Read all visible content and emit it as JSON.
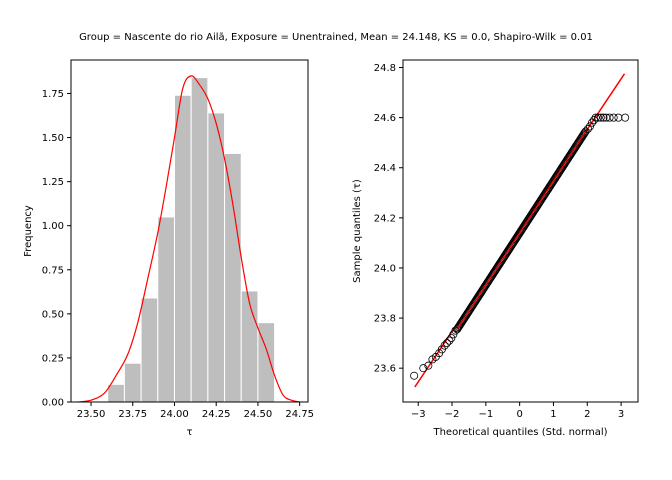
{
  "title": "Group = Nascente do rio Ailã, Exposure = Unentrained, Mean = 24.148, KS = 0.0, Shapiro-Wilk = 0.01",
  "chart_data": [
    {
      "type": "bar",
      "subtype": "histogram_with_kde",
      "xlabel": "τ",
      "ylabel": "Frequency",
      "xlim": [
        23.38,
        24.8
      ],
      "ylim": [
        0,
        1.94
      ],
      "xticks": [
        23.5,
        23.75,
        24.0,
        24.25,
        24.5,
        24.75
      ],
      "xtick_labels": [
        "23.50",
        "23.75",
        "24.00",
        "24.25",
        "24.50",
        "24.75"
      ],
      "yticks": [
        0,
        0.25,
        0.5,
        0.75,
        1.0,
        1.25,
        1.5,
        1.75
      ],
      "ytick_labels": [
        "0.00",
        "0.25",
        "0.50",
        "0.75",
        "1.00",
        "1.25",
        "1.50",
        "1.75"
      ],
      "bar_color": "#bebebe",
      "bins": [
        {
          "x0": 23.6,
          "x1": 23.7,
          "value": 0.1
        },
        {
          "x0": 23.7,
          "x1": 23.8,
          "value": 0.22
        },
        {
          "x0": 23.8,
          "x1": 23.9,
          "value": 0.59
        },
        {
          "x0": 23.9,
          "x1": 24.0,
          "value": 1.05
        },
        {
          "x0": 24.0,
          "x1": 24.1,
          "value": 1.74
        },
        {
          "x0": 24.1,
          "x1": 24.2,
          "value": 1.84
        },
        {
          "x0": 24.2,
          "x1": 24.3,
          "value": 1.64
        },
        {
          "x0": 24.3,
          "x1": 24.4,
          "value": 1.41
        },
        {
          "x0": 24.4,
          "x1": 24.5,
          "value": 0.63
        },
        {
          "x0": 24.5,
          "x1": 24.6,
          "value": 0.45
        }
      ],
      "kde_color": "#ff0000",
      "kde": {
        "x": [
          23.42,
          23.5,
          23.58,
          23.65,
          23.72,
          23.78,
          23.84,
          23.9,
          23.95,
          24.0,
          24.05,
          24.1,
          24.15,
          24.2,
          24.25,
          24.3,
          24.35,
          24.4,
          24.45,
          24.5,
          24.55,
          24.6,
          24.65,
          24.7,
          24.75
        ],
        "y": [
          0.0,
          0.01,
          0.05,
          0.15,
          0.27,
          0.45,
          0.7,
          0.96,
          1.22,
          1.5,
          1.78,
          1.85,
          1.8,
          1.72,
          1.58,
          1.38,
          1.12,
          0.82,
          0.56,
          0.42,
          0.3,
          0.15,
          0.04,
          0.01,
          0.0
        ]
      }
    },
    {
      "type": "scatter",
      "subtype": "qq_plot",
      "xlabel": "Theoretical quantiles (Std. normal)",
      "ylabel": "Sample quantiles (τ)",
      "xlim": [
        -3.45,
        3.5
      ],
      "ylim": [
        23.465,
        24.83
      ],
      "xticks": [
        -3,
        -2,
        -1,
        0,
        1,
        2,
        3
      ],
      "xtick_labels": [
        "−3",
        "−2",
        "−1",
        "0",
        "1",
        "2",
        "3"
      ],
      "yticks": [
        23.6,
        23.8,
        24.0,
        24.2,
        24.4,
        24.6,
        24.8
      ],
      "ytick_labels": [
        "23.6",
        "23.8",
        "24.0",
        "24.2",
        "24.4",
        "24.6",
        "24.8"
      ],
      "reference_line": {
        "x": [
          -3.1,
          3.1
        ],
        "y": [
          23.525,
          24.775
        ],
        "color": "#ff0000"
      },
      "points": {
        "x": [
          -3.12,
          -2.85,
          -2.7,
          -2.58,
          -2.48,
          -2.38,
          -2.3,
          -2.22,
          -2.15,
          -2.08,
          -2.02,
          -1.96,
          -1.9,
          2.02,
          2.08,
          2.14,
          2.2,
          2.25,
          2.32,
          2.4,
          2.48,
          2.56,
          2.66,
          2.78,
          2.92,
          3.12
        ],
        "y": [
          23.57,
          23.6,
          23.61,
          23.635,
          23.645,
          23.66,
          23.675,
          23.69,
          23.7,
          23.71,
          23.72,
          23.735,
          23.75,
          24.555,
          24.565,
          24.58,
          24.59,
          24.6,
          24.6,
          24.6,
          24.6,
          24.6,
          24.6,
          24.6,
          24.6,
          24.6
        ]
      },
      "dense_band": {
        "x": [
          -1.85,
          1.95
        ],
        "y": [
          23.755,
          24.545
        ]
      },
      "marker_edge_color": "#000000"
    }
  ]
}
